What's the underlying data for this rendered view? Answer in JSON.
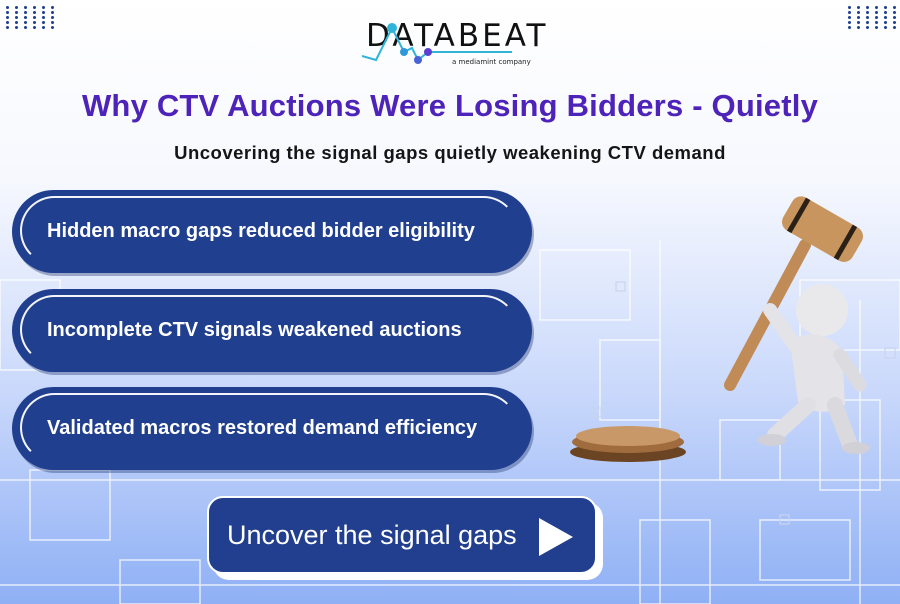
{
  "brand": {
    "name": "DATABEAT",
    "tagline": "a mediamint company"
  },
  "header": {
    "title": "Why CTV Auctions Were Losing Bidders - Quietly",
    "subtitle": "Uncovering the signal gaps quietly weakening CTV demand"
  },
  "points": [
    {
      "label": "Hidden macro gaps reduced bidder eligibility"
    },
    {
      "label": "Incomplete CTV signals weakened auctions"
    },
    {
      "label": "Validated macros restored demand efficiency"
    }
  ],
  "cta": {
    "label": "Uncover the signal gaps",
    "icon": "play-icon"
  },
  "colors": {
    "title": "#4d23b9",
    "pill": "#203f8f",
    "accent": "#30b5d8"
  }
}
